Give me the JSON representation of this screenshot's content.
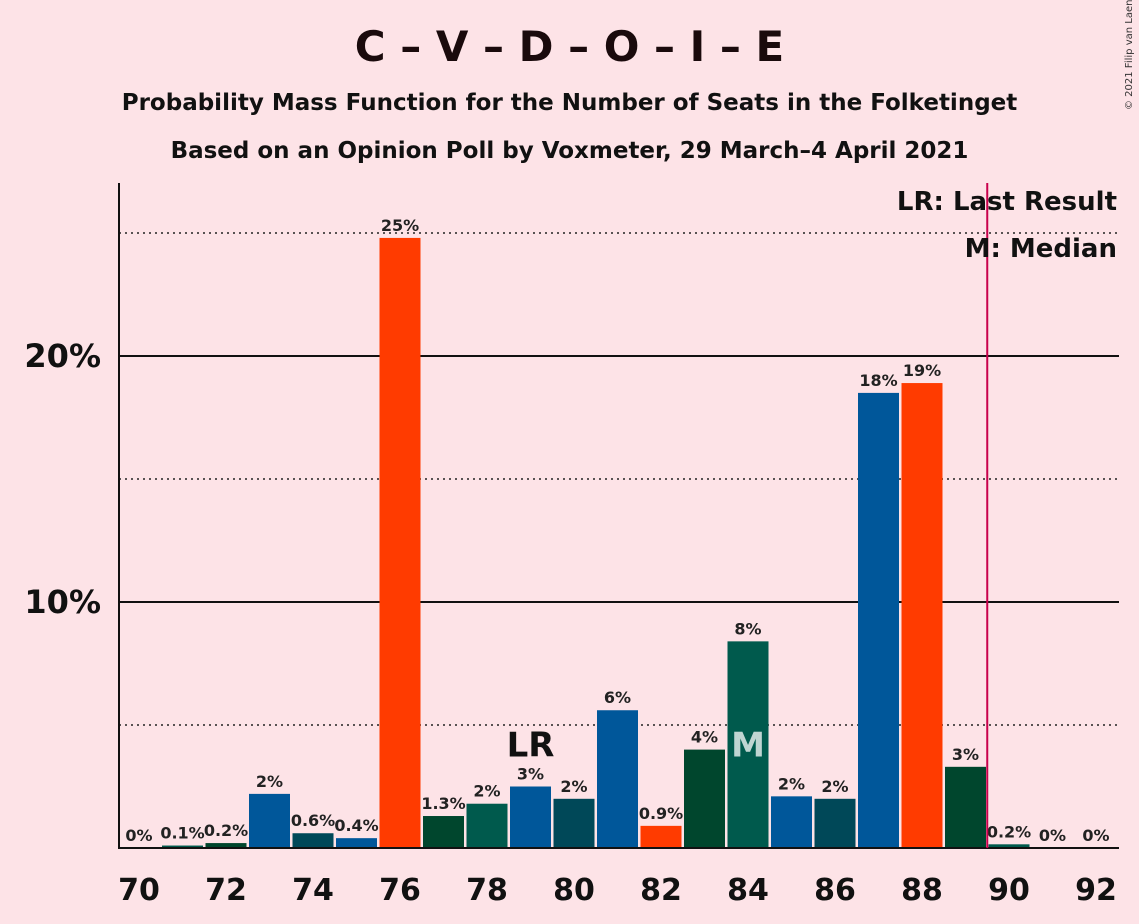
{
  "chart_data": {
    "type": "bar",
    "title": "C – V – D – O – I – E",
    "subtitle": "Probability Mass Function for the Number of Seats in the Folketinget",
    "source": "Based on an Opinion Poll by Voxmeter, 29 March–4 April 2021",
    "copyright": "© 2021 Filip van Laenen",
    "categories": [
      70,
      71,
      72,
      73,
      74,
      75,
      76,
      77,
      78,
      79,
      80,
      81,
      82,
      83,
      84,
      85,
      86,
      87,
      88,
      89,
      90,
      91,
      92
    ],
    "values": [
      0,
      0.1,
      0.2,
      2.2,
      0.6,
      0.4,
      24.8,
      1.3,
      1.8,
      2.5,
      2.0,
      5.6,
      0.9,
      4.0,
      8.4,
      2.1,
      2.0,
      18.5,
      18.9,
      3.3,
      0.15,
      0,
      0
    ],
    "value_labels": [
      "0%",
      "0.1%",
      "0.2%",
      "2%",
      "0.6%",
      "0.4%",
      "25%",
      "1.3%",
      "2%",
      "3%",
      "2%",
      "6%",
      "0.9%",
      "4%",
      "8%",
      "2%",
      "2%",
      "18%",
      "19%",
      "3%",
      "0.2%",
      "0%",
      "0%"
    ],
    "bar_colors": [
      "#00579a",
      "#005a4d",
      "#00462d",
      "#00579a",
      "#004858",
      "#00579a",
      "#ff3b00",
      "#00462d",
      "#005a4d",
      "#00579a",
      "#004858",
      "#00579a",
      "#ff3b00",
      "#00462d",
      "#005a4d",
      "#00579a",
      "#004858",
      "#00579a",
      "#ff3b00",
      "#00462d",
      "#005a4d",
      "#00579a",
      "#004858"
    ],
    "x_ticks": [
      "70",
      "72",
      "74",
      "76",
      "78",
      "80",
      "82",
      "84",
      "86",
      "88",
      "90",
      "92"
    ],
    "y_ticks": [
      {
        "value": 10,
        "label": "10%"
      },
      {
        "value": 20,
        "label": "20%"
      }
    ],
    "dotted_gridlines": [
      5,
      15,
      25
    ],
    "ylim": [
      0,
      27
    ],
    "last_result": {
      "seat": 79,
      "label": "LR"
    },
    "median": {
      "seat": 84,
      "label": "M"
    },
    "majority_line": 89.5,
    "majority_color": "#c8004c",
    "legend": [
      "LR: Last Result",
      "M: Median"
    ],
    "legend_position": "top-right"
  }
}
